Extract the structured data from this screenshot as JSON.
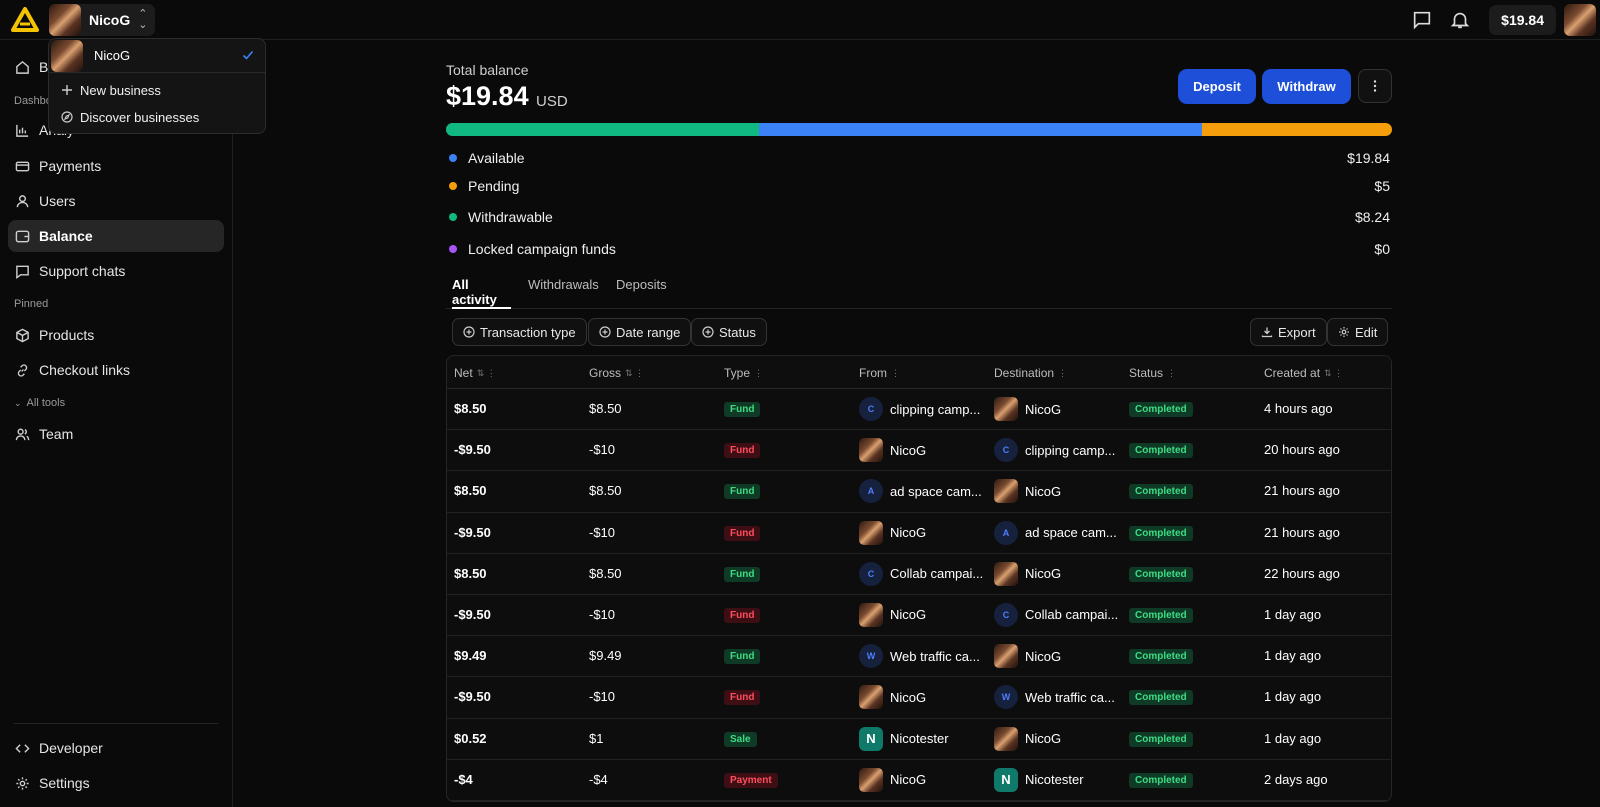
{
  "topbar": {
    "business_name": "NicoG",
    "balance_chip": "$19.84"
  },
  "dropdown": {
    "current": "NicoG",
    "items": [
      {
        "label": "New business",
        "icon": "plus-icon"
      },
      {
        "label": "Discover businesses",
        "icon": "compass-icon"
      }
    ]
  },
  "sidebar": {
    "items_top": [
      {
        "label": "Bu",
        "icon": "home-icon"
      },
      {
        "label": "Analy",
        "icon": "chart-icon"
      },
      {
        "label": "Payments",
        "icon": "card-icon"
      },
      {
        "label": "Users",
        "icon": "user-icon"
      },
      {
        "label": "Balance",
        "icon": "wallet-icon",
        "active": true
      },
      {
        "label": "Support chats",
        "icon": "chat-icon"
      }
    ],
    "dashboard_label": "Dashbo",
    "pinned_label": "Pinned",
    "pinned": [
      {
        "label": "Products",
        "icon": "cube-icon"
      },
      {
        "label": "Checkout links",
        "icon": "link-icon"
      }
    ],
    "all_tools_label": "All tools",
    "tools": [
      {
        "label": "Team",
        "icon": "team-icon"
      }
    ],
    "bottom": [
      {
        "label": "Developer",
        "icon": "code-icon"
      },
      {
        "label": "Settings",
        "icon": "gear-icon"
      }
    ]
  },
  "balance": {
    "label": "Total balance",
    "amount": "$19.84",
    "currency": "USD",
    "deposit_label": "Deposit",
    "withdraw_label": "Withdraw",
    "bar": [
      {
        "color": "#10b981",
        "fraction": 0.331
      },
      {
        "color": "#3b82f6",
        "fraction": 0.468
      },
      {
        "color": "#f59e0b",
        "fraction": 0.201
      }
    ],
    "breakdown": [
      {
        "label": "Available",
        "value": "$19.84",
        "color": "#3b82f6"
      },
      {
        "label": "Pending",
        "value": "$5",
        "color": "#f59e0b"
      },
      {
        "label": "Withdrawable",
        "value": "$8.24",
        "color": "#10b981"
      },
      {
        "label": "Locked campaign funds",
        "value": "$0",
        "color": "#a855f7"
      }
    ]
  },
  "tabs": [
    "All activity",
    "Withdrawals",
    "Deposits"
  ],
  "filters": [
    "Transaction type",
    "Date range",
    "Status"
  ],
  "actions": {
    "export": "Export",
    "edit": "Edit"
  },
  "table": {
    "columns": [
      "Net",
      "Gross",
      "Type",
      "From",
      "Destination",
      "Status",
      "Created at"
    ],
    "rows": [
      {
        "net": "$8.50",
        "gross": "$8.50",
        "type": "Fund",
        "tone": "green",
        "from": {
          "name": "clipping camp...",
          "kind": "letter",
          "letter": "C"
        },
        "dest": {
          "name": "NicoG",
          "kind": "photo"
        },
        "status": "Completed",
        "created": "4 hours ago"
      },
      {
        "net": "-$9.50",
        "gross": "-$10",
        "type": "Fund",
        "tone": "red",
        "from": {
          "name": "NicoG",
          "kind": "photo"
        },
        "dest": {
          "name": "clipping camp...",
          "kind": "letter",
          "letter": "C"
        },
        "status": "Completed",
        "created": "20 hours ago"
      },
      {
        "net": "$8.50",
        "gross": "$8.50",
        "type": "Fund",
        "tone": "green",
        "from": {
          "name": "ad space cam...",
          "kind": "letter",
          "letter": "A"
        },
        "dest": {
          "name": "NicoG",
          "kind": "photo"
        },
        "status": "Completed",
        "created": "21 hours ago"
      },
      {
        "net": "-$9.50",
        "gross": "-$10",
        "type": "Fund",
        "tone": "red",
        "from": {
          "name": "NicoG",
          "kind": "photo"
        },
        "dest": {
          "name": "ad space cam...",
          "kind": "letter",
          "letter": "A"
        },
        "status": "Completed",
        "created": "21 hours ago"
      },
      {
        "net": "$8.50",
        "gross": "$8.50",
        "type": "Fund",
        "tone": "green",
        "from": {
          "name": "Collab campai...",
          "kind": "letter",
          "letter": "C"
        },
        "dest": {
          "name": "NicoG",
          "kind": "photo"
        },
        "status": "Completed",
        "created": "22 hours ago"
      },
      {
        "net": "-$9.50",
        "gross": "-$10",
        "type": "Fund",
        "tone": "red",
        "from": {
          "name": "NicoG",
          "kind": "photo"
        },
        "dest": {
          "name": "Collab campai...",
          "kind": "letter",
          "letter": "C"
        },
        "status": "Completed",
        "created": "1 day ago"
      },
      {
        "net": "$9.49",
        "gross": "$9.49",
        "type": "Fund",
        "tone": "green",
        "from": {
          "name": "Web traffic ca...",
          "kind": "letter",
          "letter": "W"
        },
        "dest": {
          "name": "NicoG",
          "kind": "photo"
        },
        "status": "Completed",
        "created": "1 day ago"
      },
      {
        "net": "-$9.50",
        "gross": "-$10",
        "type": "Fund",
        "tone": "red",
        "from": {
          "name": "NicoG",
          "kind": "photo"
        },
        "dest": {
          "name": "Web traffic ca...",
          "kind": "letter",
          "letter": "W"
        },
        "status": "Completed",
        "created": "1 day ago"
      },
      {
        "net": "$0.52",
        "gross": "$1",
        "type": "Sale",
        "tone": "green",
        "from": {
          "name": "Nicotester",
          "kind": "teal",
          "letter": "N"
        },
        "dest": {
          "name": "NicoG",
          "kind": "photo"
        },
        "status": "Completed",
        "created": "1 day ago"
      },
      {
        "net": "-$4",
        "gross": "-$4",
        "type": "Payment",
        "tone": "red",
        "from": {
          "name": "NicoG",
          "kind": "photo"
        },
        "dest": {
          "name": "Nicotester",
          "kind": "teal",
          "letter": "N"
        },
        "status": "Completed",
        "created": "2 days ago"
      }
    ]
  }
}
